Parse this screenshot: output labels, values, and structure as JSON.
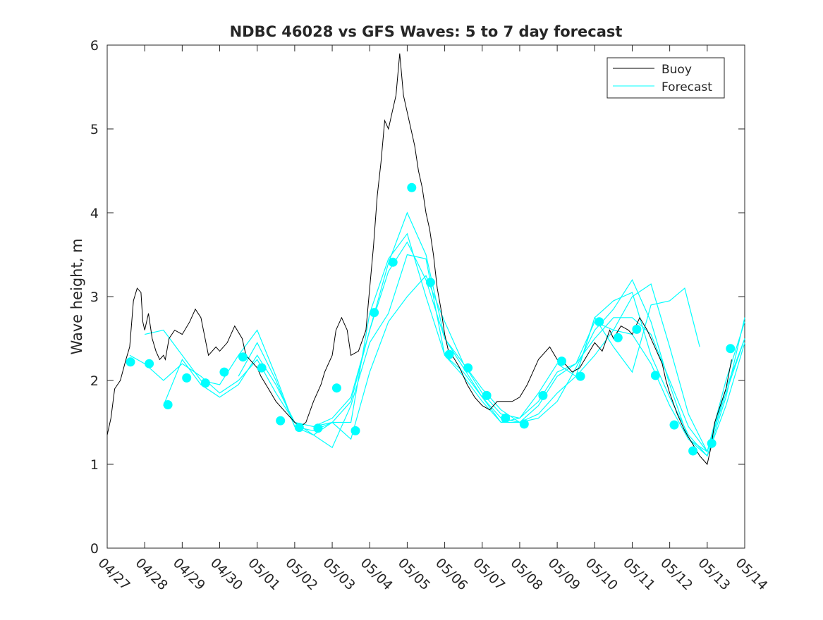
{
  "chart_data": {
    "type": "line",
    "title": "NDBC 46028 vs GFS Waves: 5 to 7 day forecast",
    "xlabel": "",
    "ylabel": "Wave height, m",
    "xlim": [
      0,
      17
    ],
    "ylim": [
      0,
      6
    ],
    "x_ticks": [
      0,
      1,
      2,
      3,
      4,
      5,
      6,
      7,
      8,
      9,
      10,
      11,
      12,
      13,
      14,
      15,
      16,
      17
    ],
    "x_tick_labels": [
      "04/27",
      "04/28",
      "04/29",
      "04/30",
      "05/01",
      "05/02",
      "05/03",
      "05/04",
      "05/05",
      "05/06",
      "05/07",
      "05/08",
      "05/09",
      "05/10",
      "05/11",
      "05/12",
      "05/13",
      "05/14"
    ],
    "y_ticks": [
      0,
      1,
      2,
      3,
      4,
      5,
      6
    ],
    "y_tick_labels": [
      "0",
      "1",
      "2",
      "3",
      "4",
      "5",
      "6"
    ],
    "grid": false,
    "legend_placement": "top-right",
    "colors": {
      "buoy": "#000000",
      "forecast": "#00ffff",
      "axis": "#262626"
    },
    "series": [
      {
        "name": "Buoy",
        "kind": "line",
        "x": [
          0.0,
          0.1,
          0.2,
          0.35,
          0.5,
          0.6,
          0.7,
          0.8,
          0.9,
          0.95,
          1.0,
          1.1,
          1.2,
          1.3,
          1.4,
          1.5,
          1.55,
          1.65,
          1.8,
          2.0,
          2.2,
          2.35,
          2.5,
          2.7,
          2.9,
          3.0,
          3.2,
          3.4,
          3.6,
          3.7,
          3.9,
          4.0,
          4.1,
          4.3,
          4.5,
          4.7,
          4.9,
          5.0,
          5.15,
          5.3,
          5.5,
          5.7,
          5.8,
          6.0,
          6.1,
          6.25,
          6.4,
          6.5,
          6.7,
          6.9,
          7.0,
          7.1,
          7.2,
          7.3,
          7.4,
          7.5,
          7.6,
          7.7,
          7.8,
          7.9,
          8.0,
          8.1,
          8.2,
          8.3,
          8.4,
          8.5,
          8.6,
          8.7,
          8.8,
          8.9,
          9.0,
          9.1,
          9.2,
          9.4,
          9.6,
          9.8,
          10.0,
          10.2,
          10.4,
          10.6,
          10.8,
          11.0,
          11.2,
          11.5,
          11.8,
          12.0,
          12.2,
          12.4,
          12.6,
          12.8,
          13.0,
          13.2,
          13.4,
          13.5,
          13.7,
          13.9,
          14.0,
          14.2,
          14.4,
          14.6,
          14.8,
          14.9,
          15.0,
          15.2,
          15.4,
          15.6,
          15.8,
          15.9,
          16.0,
          16.1,
          16.2,
          16.35,
          16.5,
          16.65
        ],
        "values": [
          1.35,
          1.55,
          1.9,
          2.0,
          2.25,
          2.4,
          2.95,
          3.1,
          3.05,
          2.7,
          2.6,
          2.8,
          2.5,
          2.35,
          2.25,
          2.3,
          2.25,
          2.5,
          2.6,
          2.55,
          2.7,
          2.85,
          2.75,
          2.3,
          2.4,
          2.35,
          2.45,
          2.65,
          2.5,
          2.3,
          2.2,
          2.15,
          2.05,
          1.9,
          1.75,
          1.65,
          1.55,
          1.5,
          1.45,
          1.5,
          1.75,
          1.95,
          2.1,
          2.3,
          2.6,
          2.75,
          2.6,
          2.3,
          2.35,
          2.6,
          3.1,
          3.6,
          4.2,
          4.6,
          5.1,
          5.0,
          5.2,
          5.4,
          5.9,
          5.4,
          5.2,
          5.0,
          4.8,
          4.5,
          4.3,
          4.0,
          3.8,
          3.5,
          3.1,
          2.85,
          2.55,
          2.35,
          2.3,
          2.15,
          1.95,
          1.8,
          1.7,
          1.65,
          1.75,
          1.75,
          1.75,
          1.8,
          1.95,
          2.25,
          2.4,
          2.25,
          2.2,
          2.1,
          2.15,
          2.3,
          2.45,
          2.35,
          2.6,
          2.5,
          2.65,
          2.6,
          2.55,
          2.75,
          2.6,
          2.4,
          2.2,
          2.0,
          1.85,
          1.6,
          1.4,
          1.25,
          1.1,
          1.05,
          1.0,
          1.2,
          1.5,
          1.7,
          1.9,
          2.25
        ]
      },
      {
        "name": "Forecast",
        "kind": "line",
        "runs": [
          {
            "x": [
              0.6,
              1.0,
              1.5,
              2.0,
              2.5,
              3.0,
              3.5,
              4.0,
              4.5,
              5.0,
              5.5,
              6.0,
              6.5,
              7.0,
              7.5,
              8.0,
              8.5,
              9.0,
              9.5,
              10.0,
              10.5,
              11.0,
              11.5,
              12.0,
              12.5,
              13.0,
              13.5,
              14.0,
              14.5,
              15.0,
              15.5,
              16.0,
              16.5,
              17.0
            ],
            "values": [
              2.3,
              2.2,
              2.0,
              2.2,
              2.05,
              1.85,
              2.0,
              2.25,
              1.85,
              1.5,
              1.45,
              1.55,
              1.8,
              2.6,
              3.3,
              3.65,
              3.2,
              2.5,
              2.2,
              1.85,
              1.6,
              1.55,
              1.75,
              2.1,
              2.2,
              2.5,
              2.75,
              2.75,
              2.55,
              2.0,
              1.45,
              1.15,
              1.9,
              2.5
            ]
          },
          {
            "x": [
              1.0,
              1.5,
              2.0,
              2.5,
              3.0,
              3.5,
              4.0,
              4.5,
              5.0,
              5.5,
              6.0,
              6.5,
              7.0,
              7.5,
              8.0,
              8.5,
              9.0,
              9.5,
              10.0,
              10.5,
              11.0,
              11.5,
              12.0,
              12.5,
              13.0,
              13.5,
              14.0,
              14.5,
              15.0,
              15.5,
              16.0,
              16.5,
              17.0
            ],
            "values": [
              2.55,
              2.6,
              2.3,
              2.0,
              1.95,
              2.3,
              2.6,
              2.05,
              1.45,
              1.4,
              1.5,
              1.3,
              2.1,
              2.7,
              3.0,
              3.25,
              2.7,
              2.2,
              1.9,
              1.65,
              1.5,
              1.6,
              1.85,
              2.05,
              2.3,
              2.6,
              3.0,
              3.15,
              2.4,
              1.6,
              1.15,
              2.0,
              2.7
            ]
          },
          {
            "x": [
              1.5,
              2.0,
              2.5,
              3.0,
              3.5,
              4.0,
              4.5,
              5.0,
              5.5,
              6.0,
              6.5,
              7.0,
              7.5,
              8.0,
              8.5,
              9.0,
              9.5,
              10.0,
              10.5,
              11.0,
              11.5,
              12.0,
              12.5,
              13.0,
              13.5,
              14.0,
              14.5,
              15.0,
              15.5,
              16.0,
              16.5,
              17.0
            ],
            "values": [
              1.7,
              2.25,
              1.95,
              1.8,
              1.95,
              2.3,
              1.95,
              1.5,
              1.35,
              1.2,
              1.7,
              2.45,
              2.8,
              3.5,
              3.45,
              2.3,
              2.1,
              1.8,
              1.55,
              1.5,
              1.55,
              1.75,
              2.15,
              2.6,
              2.85,
              3.2,
              2.7,
              1.95,
              1.3,
              1.1,
              1.8,
              2.75
            ]
          },
          {
            "x": [
              3.5,
              4.0,
              4.5,
              5.0,
              5.5,
              6.0,
              6.5,
              7.0,
              7.5,
              8.0,
              8.5,
              9.0,
              9.5,
              10.0,
              10.5,
              11.0,
              11.5,
              12.0,
              12.5,
              13.0,
              13.5,
              14.0,
              14.5,
              15.0,
              15.5,
              16.0,
              16.5,
              17.0
            ],
            "values": [
              2.05,
              2.45,
              2.0,
              1.45,
              1.35,
              1.5,
              1.75,
              2.6,
              3.4,
              4.0,
              3.5,
              2.5,
              2.15,
              1.8,
              1.5,
              1.5,
              1.7,
              2.05,
              2.2,
              2.7,
              2.6,
              2.55,
              2.2,
              1.7,
              1.3,
              1.15,
              1.85,
              2.5
            ]
          },
          {
            "x": [
              5.5,
              6.0,
              6.5,
              7.0,
              7.5,
              8.0,
              8.5,
              9.0,
              9.5,
              10.0,
              10.5,
              11.0,
              11.5,
              12.0,
              12.5,
              13.0,
              13.5,
              14.0,
              14.5,
              15.0,
              15.5,
              16.0,
              16.5,
              17.0
            ],
            "values": [
              1.45,
              1.5,
              1.5,
              2.8,
              3.45,
              3.75,
              3.0,
              2.3,
              2.05,
              1.75,
              1.5,
              1.55,
              1.85,
              2.2,
              2.05,
              2.75,
              2.95,
              3.05,
              2.3,
              1.8,
              1.35,
              1.1,
              1.7,
              2.45
            ]
          },
          {
            "x": [
              12.5,
              13.0,
              13.5,
              14.0,
              14.5,
              15.0,
              15.4,
              15.8
            ],
            "values": [
              2.05,
              2.75,
              2.4,
              2.1,
              2.9,
              2.95,
              3.1,
              2.4
            ]
          }
        ]
      },
      {
        "name": "",
        "kind": "markers",
        "x": [
          0.62,
          1.12,
          1.62,
          2.12,
          2.62,
          3.12,
          3.62,
          4.12,
          4.62,
          5.12,
          5.62,
          6.12,
          6.62,
          7.12,
          7.62,
          8.12,
          8.62,
          9.12,
          9.62,
          10.12,
          10.62,
          11.12,
          11.62,
          12.12,
          12.62,
          13.12,
          13.62,
          14.12,
          14.62,
          15.12,
          15.62,
          16.12,
          16.62
        ],
        "values": [
          2.22,
          2.2,
          1.71,
          2.03,
          1.97,
          2.1,
          2.28,
          2.15,
          1.52,
          1.44,
          1.43,
          1.91,
          1.4,
          2.81,
          3.41,
          4.3,
          3.17,
          2.31,
          2.15,
          1.82,
          1.55,
          1.48,
          1.82,
          2.23,
          2.05,
          2.7,
          2.51,
          2.61,
          2.06,
          1.47,
          1.16,
          1.25,
          2.38
        ]
      }
    ],
    "legend": [
      "Buoy",
      "Forecast"
    ]
  }
}
